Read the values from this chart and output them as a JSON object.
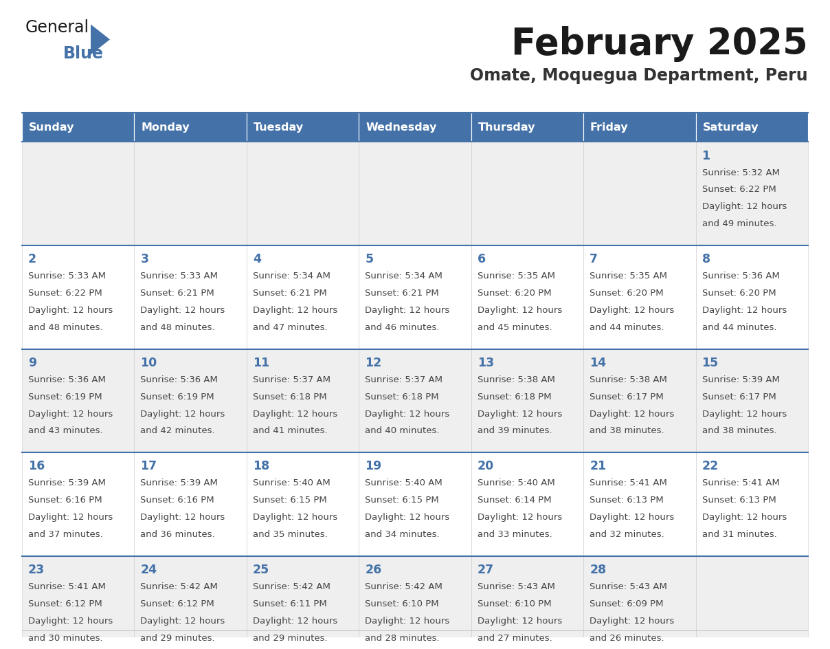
{
  "title": "February 2025",
  "subtitle": "Omate, Moquegua Department, Peru",
  "header_bg_color": "#4472a8",
  "header_text_color": "#ffffff",
  "day_names": [
    "Sunday",
    "Monday",
    "Tuesday",
    "Wednesday",
    "Thursday",
    "Friday",
    "Saturday"
  ],
  "cell_bg_odd": "#efefef",
  "cell_bg_even": "#ffffff",
  "cell_border_color": "#4472a8",
  "number_color": "#4472a8",
  "text_color": "#444444",
  "separator_color": "#4472a8",
  "calendar": [
    [
      {
        "day": null,
        "sunrise": null,
        "sunset": null,
        "daylight_h": null,
        "daylight_m": null
      },
      {
        "day": null,
        "sunrise": null,
        "sunset": null,
        "daylight_h": null,
        "daylight_m": null
      },
      {
        "day": null,
        "sunrise": null,
        "sunset": null,
        "daylight_h": null,
        "daylight_m": null
      },
      {
        "day": null,
        "sunrise": null,
        "sunset": null,
        "daylight_h": null,
        "daylight_m": null
      },
      {
        "day": null,
        "sunrise": null,
        "sunset": null,
        "daylight_h": null,
        "daylight_m": null
      },
      {
        "day": null,
        "sunrise": null,
        "sunset": null,
        "daylight_h": null,
        "daylight_m": null
      },
      {
        "day": 1,
        "sunrise": "5:32 AM",
        "sunset": "6:22 PM",
        "daylight_h": "12 hours",
        "daylight_m": "and 49 minutes."
      }
    ],
    [
      {
        "day": 2,
        "sunrise": "5:33 AM",
        "sunset": "6:22 PM",
        "daylight_h": "12 hours",
        "daylight_m": "and 48 minutes."
      },
      {
        "day": 3,
        "sunrise": "5:33 AM",
        "sunset": "6:21 PM",
        "daylight_h": "12 hours",
        "daylight_m": "and 48 minutes."
      },
      {
        "day": 4,
        "sunrise": "5:34 AM",
        "sunset": "6:21 PM",
        "daylight_h": "12 hours",
        "daylight_m": "and 47 minutes."
      },
      {
        "day": 5,
        "sunrise": "5:34 AM",
        "sunset": "6:21 PM",
        "daylight_h": "12 hours",
        "daylight_m": "and 46 minutes."
      },
      {
        "day": 6,
        "sunrise": "5:35 AM",
        "sunset": "6:20 PM",
        "daylight_h": "12 hours",
        "daylight_m": "and 45 minutes."
      },
      {
        "day": 7,
        "sunrise": "5:35 AM",
        "sunset": "6:20 PM",
        "daylight_h": "12 hours",
        "daylight_m": "and 44 minutes."
      },
      {
        "day": 8,
        "sunrise": "5:36 AM",
        "sunset": "6:20 PM",
        "daylight_h": "12 hours",
        "daylight_m": "and 44 minutes."
      }
    ],
    [
      {
        "day": 9,
        "sunrise": "5:36 AM",
        "sunset": "6:19 PM",
        "daylight_h": "12 hours",
        "daylight_m": "and 43 minutes."
      },
      {
        "day": 10,
        "sunrise": "5:36 AM",
        "sunset": "6:19 PM",
        "daylight_h": "12 hours",
        "daylight_m": "and 42 minutes."
      },
      {
        "day": 11,
        "sunrise": "5:37 AM",
        "sunset": "6:18 PM",
        "daylight_h": "12 hours",
        "daylight_m": "and 41 minutes."
      },
      {
        "day": 12,
        "sunrise": "5:37 AM",
        "sunset": "6:18 PM",
        "daylight_h": "12 hours",
        "daylight_m": "and 40 minutes."
      },
      {
        "day": 13,
        "sunrise": "5:38 AM",
        "sunset": "6:18 PM",
        "daylight_h": "12 hours",
        "daylight_m": "and 39 minutes."
      },
      {
        "day": 14,
        "sunrise": "5:38 AM",
        "sunset": "6:17 PM",
        "daylight_h": "12 hours",
        "daylight_m": "and 38 minutes."
      },
      {
        "day": 15,
        "sunrise": "5:39 AM",
        "sunset": "6:17 PM",
        "daylight_h": "12 hours",
        "daylight_m": "and 38 minutes."
      }
    ],
    [
      {
        "day": 16,
        "sunrise": "5:39 AM",
        "sunset": "6:16 PM",
        "daylight_h": "12 hours",
        "daylight_m": "and 37 minutes."
      },
      {
        "day": 17,
        "sunrise": "5:39 AM",
        "sunset": "6:16 PM",
        "daylight_h": "12 hours",
        "daylight_m": "and 36 minutes."
      },
      {
        "day": 18,
        "sunrise": "5:40 AM",
        "sunset": "6:15 PM",
        "daylight_h": "12 hours",
        "daylight_m": "and 35 minutes."
      },
      {
        "day": 19,
        "sunrise": "5:40 AM",
        "sunset": "6:15 PM",
        "daylight_h": "12 hours",
        "daylight_m": "and 34 minutes."
      },
      {
        "day": 20,
        "sunrise": "5:40 AM",
        "sunset": "6:14 PM",
        "daylight_h": "12 hours",
        "daylight_m": "and 33 minutes."
      },
      {
        "day": 21,
        "sunrise": "5:41 AM",
        "sunset": "6:13 PM",
        "daylight_h": "12 hours",
        "daylight_m": "and 32 minutes."
      },
      {
        "day": 22,
        "sunrise": "5:41 AM",
        "sunset": "6:13 PM",
        "daylight_h": "12 hours",
        "daylight_m": "and 31 minutes."
      }
    ],
    [
      {
        "day": 23,
        "sunrise": "5:41 AM",
        "sunset": "6:12 PM",
        "daylight_h": "12 hours",
        "daylight_m": "and 30 minutes."
      },
      {
        "day": 24,
        "sunrise": "5:42 AM",
        "sunset": "6:12 PM",
        "daylight_h": "12 hours",
        "daylight_m": "and 29 minutes."
      },
      {
        "day": 25,
        "sunrise": "5:42 AM",
        "sunset": "6:11 PM",
        "daylight_h": "12 hours",
        "daylight_m": "and 29 minutes."
      },
      {
        "day": 26,
        "sunrise": "5:42 AM",
        "sunset": "6:10 PM",
        "daylight_h": "12 hours",
        "daylight_m": "and 28 minutes."
      },
      {
        "day": 27,
        "sunrise": "5:43 AM",
        "sunset": "6:10 PM",
        "daylight_h": "12 hours",
        "daylight_m": "and 27 minutes."
      },
      {
        "day": 28,
        "sunrise": "5:43 AM",
        "sunset": "6:09 PM",
        "daylight_h": "12 hours",
        "daylight_m": "and 26 minutes."
      },
      {
        "day": null,
        "sunrise": null,
        "sunset": null,
        "daylight_h": null,
        "daylight_m": null
      }
    ]
  ]
}
